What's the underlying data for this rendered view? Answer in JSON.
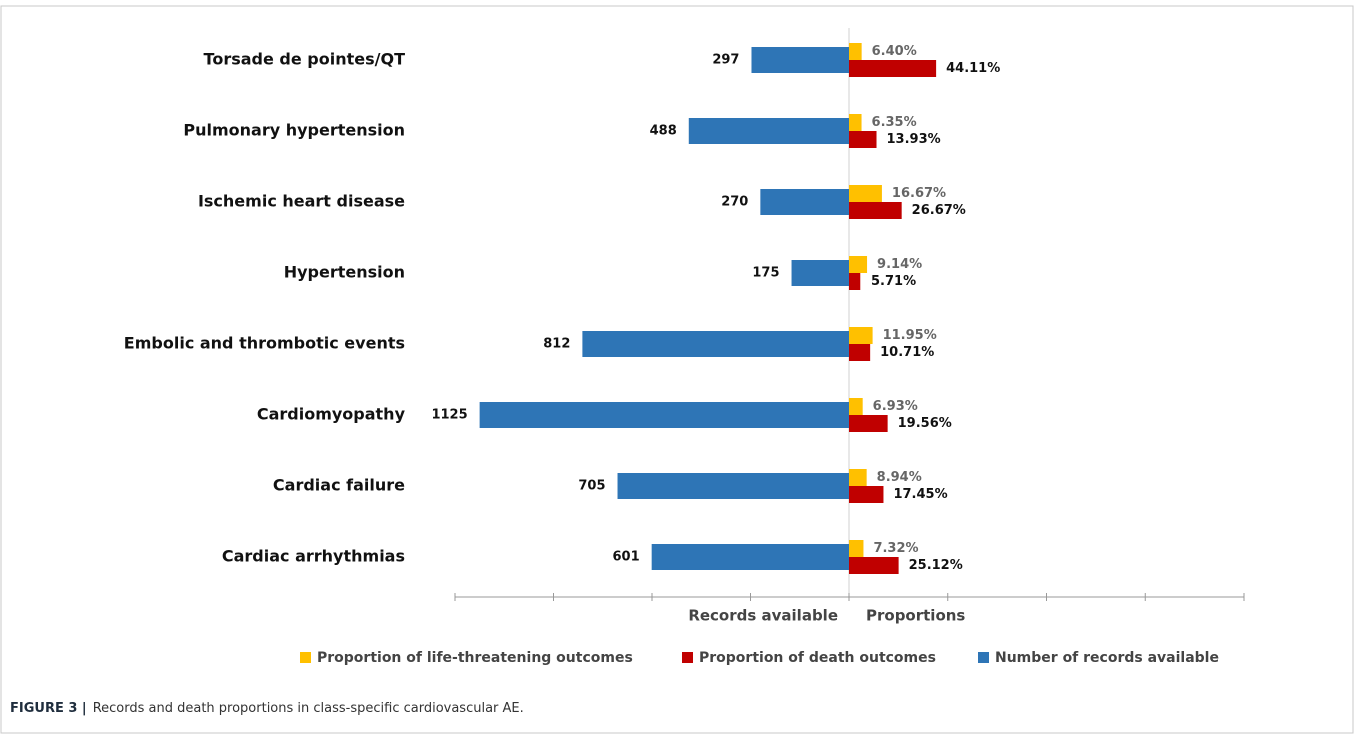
{
  "chart_data": {
    "type": "diverging-bar",
    "categories": [
      "Torsade de pointes/QT",
      "Pulmonary hypertension",
      "Ischemic heart disease",
      "Hypertension",
      "Embolic and thrombotic events",
      "Cardiomyopathy",
      "Cardiac failure",
      "Cardiac arrhythmias"
    ],
    "xlabel": "Records available",
    "x2label": "Proportions",
    "xlim": [
      0,
      1200
    ],
    "xticks": [
      0,
      300,
      600,
      900,
      1200
    ],
    "x2lim": [
      0,
      200
    ],
    "x2ticks": [
      0,
      50,
      100,
      150,
      200
    ],
    "series": [
      {
        "name": "Proportion of life-threatening outcomes",
        "color": "#ffc000",
        "axis": "x2",
        "values": [
          6.4,
          6.35,
          16.67,
          9.14,
          11.95,
          6.93,
          8.94,
          7.32
        ],
        "value_labels": [
          "6.40%",
          "6.35%",
          "16.67%",
          "9.14%",
          "11.95%",
          "6.93%",
          "8.94%",
          "7.32%"
        ]
      },
      {
        "name": "Proportion of death outcomes",
        "color": "#c00000",
        "axis": "x2",
        "values": [
          44.11,
          13.93,
          26.67,
          5.71,
          10.71,
          19.56,
          17.45,
          25.12
        ],
        "value_labels": [
          "44.11%",
          "13.93%",
          "26.67%",
          "5.71%",
          "10.71%",
          "19.56%",
          "17.45%",
          "25.12%"
        ]
      },
      {
        "name": "Number of records available",
        "color": "#2e75b6",
        "axis": "x",
        "values": [
          297,
          488,
          270,
          175,
          812,
          1125,
          705,
          601
        ]
      }
    ]
  },
  "caption": {
    "label": "FIGURE 3 |",
    "text": "Records and death proportions in class-specific cardiovascular AE."
  }
}
